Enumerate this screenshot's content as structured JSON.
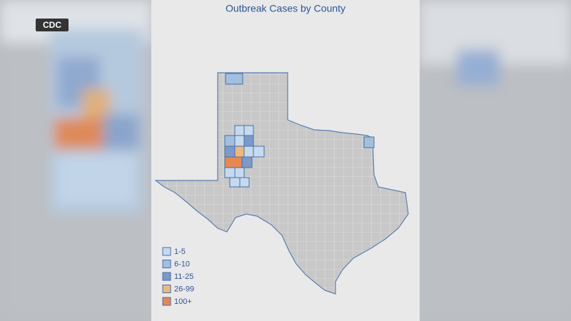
{
  "badge": "CDC",
  "map": {
    "title": "Outbreak Cases by County",
    "legend": [
      {
        "label": "1-5",
        "color": "#c5daee"
      },
      {
        "label": "6-10",
        "color": "#a3bfdf"
      },
      {
        "label": "11-25",
        "color": "#7b9acb"
      },
      {
        "label": "26-99",
        "color": "#f0b878"
      },
      {
        "label": "100+",
        "color": "#e8874f"
      }
    ]
  }
}
